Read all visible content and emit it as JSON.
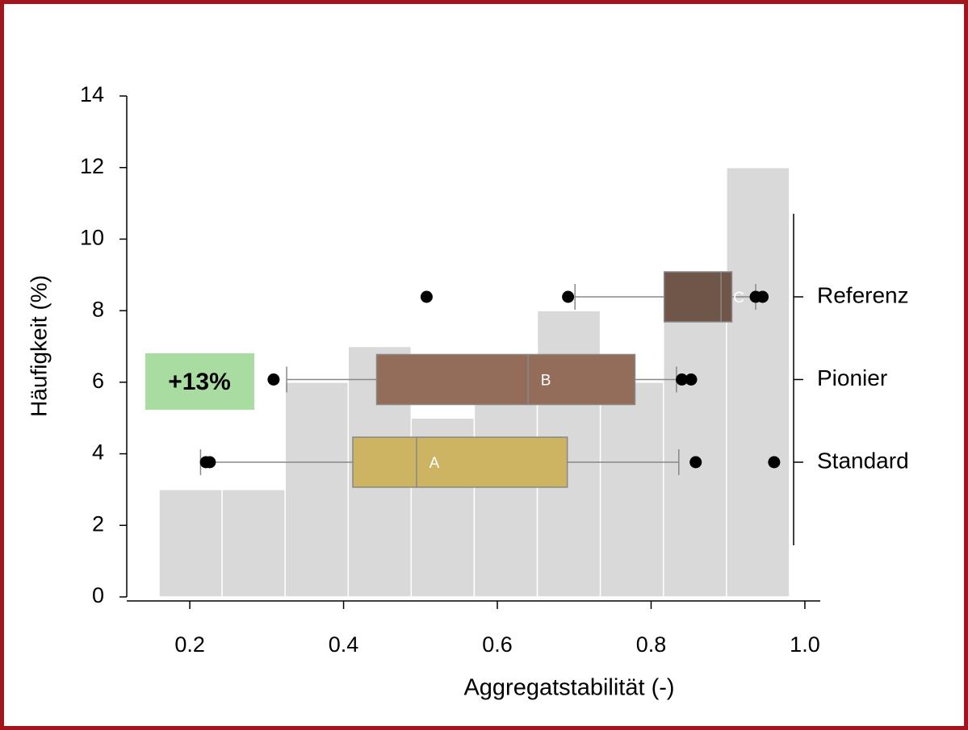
{
  "chart_data": {
    "type": "histogram",
    "xlabel": "Aggregatstabilität (-)",
    "ylabel": "Häufigkeit (%)",
    "bins": [
      0.16,
      0.242,
      0.324,
      0.406,
      0.488,
      0.57,
      0.652,
      0.734,
      0.816,
      0.898,
      0.98
    ],
    "values": [
      3,
      3,
      6,
      7,
      5,
      6,
      8,
      6,
      9,
      12
    ],
    "color": "#d9d9d9",
    "xlim": [
      0.118,
      1.02
    ],
    "ylim": [
      0,
      14
    ],
    "xticks": [
      0.2,
      0.4,
      0.6,
      0.8,
      {
        "value": 1,
        "label": "1.0"
      }
    ],
    "yticks": [
      0,
      2,
      4,
      6,
      8,
      10,
      12,
      14
    ],
    "boxes": [
      {
        "name": "Referenz",
        "label": "C",
        "color": "#6f5649",
        "min": 0.701,
        "q1": 0.817,
        "median": 0.891,
        "q3": 0.905,
        "max": 0.936,
        "outliers": [
          0.508,
          0.692,
          0.936,
          0.945
        ]
      },
      {
        "name": "Pionier",
        "label": "B",
        "color": "#946c5a",
        "min": 0.326,
        "q1": 0.443,
        "median": 0.64,
        "q3": 0.779,
        "max": 0.833,
        "outliers": [
          0.309,
          0.84,
          0.852
        ]
      },
      {
        "name": "Standard",
        "label": "A",
        "color": "#cdb463",
        "min": 0.214,
        "q1": 0.412,
        "median": 0.495,
        "q3": 0.691,
        "max": 0.836,
        "outliers": [
          0.221,
          0.226,
          0.858,
          0.96
        ]
      }
    ],
    "annotation": "+13%"
  }
}
